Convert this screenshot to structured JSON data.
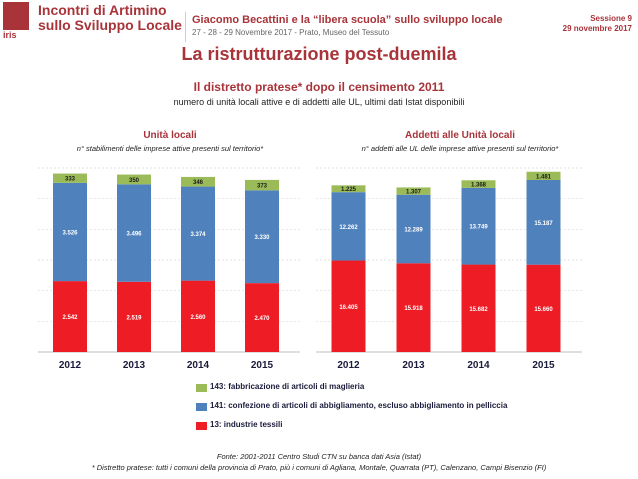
{
  "header": {
    "logo_text": "iris",
    "brand_line1": "Incontri di Artimino",
    "brand_line2": "sullo Sviluppo Locale",
    "event_title": "Giacomo Becattini e la “libera scuola” sullo sviluppo locale",
    "event_subtitle": "27 - 28 - 29 Novembre 2017 - Prato, Museo del Tessuto",
    "session_label": "Sessione 9",
    "session_date": "29 novembre 2017"
  },
  "slide": {
    "title": "La ristrutturazione post-duemila",
    "subtitle": "Il distretto pratese* dopo il censimento 2011",
    "description": "numero di unità locali attive e di addetti alle UL, ultimi dati Istat disponibili"
  },
  "colors": {
    "accent": "#a8343a",
    "series_13": "#ee1c25",
    "series_141": "#4f81bd",
    "series_143": "#9bbb59"
  },
  "chart_data": [
    {
      "type": "bar",
      "stacked": true,
      "title": "Unità locali",
      "subtitle": "n° stabilimenti delle imprese attive presenti sul territorio*",
      "categories": [
        "2012",
        "2013",
        "2014",
        "2015"
      ],
      "series": [
        {
          "name": "13: industrie tessili",
          "values": [
            2542,
            2519,
            2560,
            2470
          ],
          "labels": [
            "2.542",
            "2.519",
            "2.560",
            "2.470"
          ]
        },
        {
          "name": "141: confezione di articoli di abbigliamento, escluso abbigliamento in pelliccia",
          "values": [
            3526,
            3496,
            3374,
            3330
          ],
          "labels": [
            "3.526",
            "3.496",
            "3.374",
            "3.330"
          ]
        },
        {
          "name": "143: fabbricazione di articoli di maglieria",
          "values": [
            333,
            350,
            346,
            373
          ],
          "labels": [
            "333",
            "350",
            "346",
            "373"
          ]
        }
      ],
      "ylim": [
        0,
        6600
      ]
    },
    {
      "type": "bar",
      "stacked": true,
      "title": "Addetti alle Unità locali",
      "subtitle": "n° addetti alle UL delle imprese attive presenti sul territorio*",
      "categories": [
        "2012",
        "2013",
        "2014",
        "2015"
      ],
      "series": [
        {
          "name": "13: industrie tessili",
          "values": [
            16405,
            15918,
            15682,
            15660
          ],
          "labels": [
            "16.405",
            "15.918",
            "15.682",
            "15.660"
          ]
        },
        {
          "name": "141: confezione di articoli di abbigliamento, escluso abbigliamento in pelliccia",
          "values": [
            12262,
            12289,
            13749,
            15187
          ],
          "labels": [
            "12.262",
            "12.289",
            "13.749",
            "15.187"
          ]
        },
        {
          "name": "143: fabbricazione di articoli di maglieria",
          "values": [
            1225,
            1307,
            1368,
            1481
          ],
          "labels": [
            "1.225",
            "1.307",
            "1.368",
            "1.481"
          ]
        }
      ],
      "ylim": [
        0,
        33000
      ]
    }
  ],
  "source": "Fonte: 2001-2011 Centro Studi CTN su banca dati Asia (Istat)",
  "footnote": "* Distretto pratese:  tutti i comuni della provincia di Prato, più i comuni di Agliana, Montale, Quarrata (PT), Calenzano, Campi Bisenzio (FI)"
}
